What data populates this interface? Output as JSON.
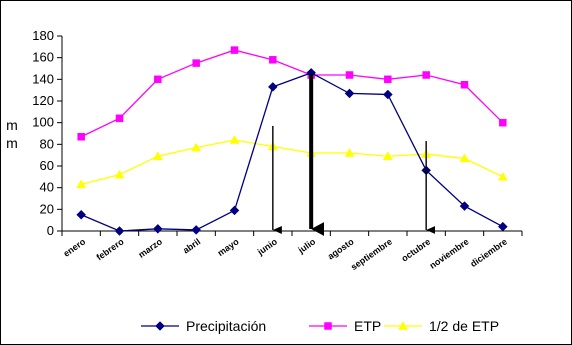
{
  "chart_data": {
    "type": "line",
    "categories": [
      "enero",
      "febrero",
      "marzo",
      "abril",
      "mayo",
      "junio",
      "julio",
      "agosto",
      "septiembre",
      "octubre",
      "noviembre",
      "diciembre"
    ],
    "series": [
      {
        "name": "Precipitación",
        "color": "#000080",
        "marker": "diamond",
        "values": [
          15,
          0,
          2,
          1,
          19,
          133,
          146,
          127,
          126,
          56,
          23,
          4
        ]
      },
      {
        "name": "ETP",
        "color": "#FF00FF",
        "marker": "square",
        "values": [
          87,
          104,
          140,
          155,
          167,
          158,
          144,
          144,
          140,
          144,
          135,
          100
        ]
      },
      {
        "name": "1/2 de ETP",
        "color": "#FFFF00",
        "marker": "triangle",
        "values": [
          43,
          52,
          69,
          77,
          84,
          78,
          72,
          72,
          69,
          71,
          67,
          50
        ]
      }
    ],
    "ylabel": [
      "m",
      "m"
    ],
    "ylim": [
      0,
      180
    ],
    "yticks": [
      0,
      20,
      40,
      60,
      80,
      100,
      120,
      140,
      160,
      180
    ],
    "grid": false,
    "legend": "bottom",
    "annotations": [
      {
        "type": "arrow",
        "x_index": 5.5,
        "from_y": 97,
        "to_y": 0,
        "weight": "thin"
      },
      {
        "type": "arrow",
        "x_index": 6.5,
        "from_y": 145,
        "to_y": 0,
        "weight": "thick"
      },
      {
        "type": "arrow",
        "x_index": 9.5,
        "from_y": 83,
        "to_y": 0,
        "weight": "thin"
      }
    ]
  }
}
